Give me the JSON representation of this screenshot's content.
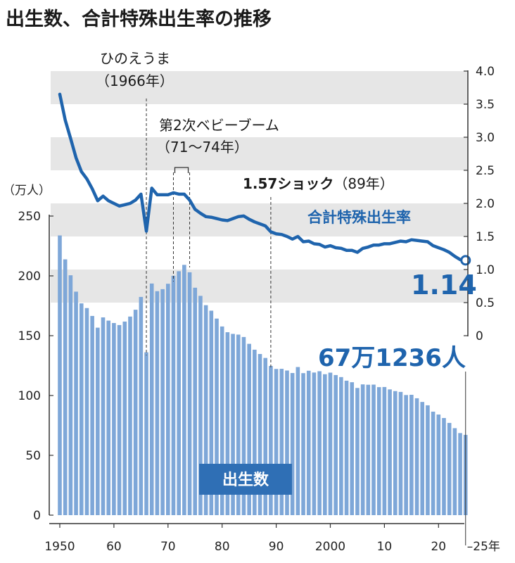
{
  "title": "出生数、合計特殊出生率の推移",
  "chart_data": {
    "type": "bar+line",
    "x_tick_labels": [
      "1950",
      "60",
      "70",
      "80",
      "90",
      "2000",
      "10",
      "20",
      "25年"
    ],
    "series": [
      {
        "name": "出生数",
        "type": "bar",
        "unit": "万人",
        "axis": "left",
        "ylim": [
          0,
          250
        ],
        "y_ticks": [
          0,
          50,
          100,
          150,
          200,
          250
        ],
        "y_axis_unit_label": "（万人）",
        "x": [
          1950,
          1951,
          1952,
          1953,
          1954,
          1955,
          1956,
          1957,
          1958,
          1959,
          1960,
          1961,
          1962,
          1963,
          1964,
          1965,
          1966,
          1967,
          1968,
          1969,
          1970,
          1971,
          1972,
          1973,
          1974,
          1975,
          1976,
          1977,
          1978,
          1979,
          1980,
          1981,
          1982,
          1983,
          1984,
          1985,
          1986,
          1987,
          1988,
          1989,
          1990,
          1991,
          1992,
          1993,
          1994,
          1995,
          1996,
          1997,
          1998,
          1999,
          2000,
          2001,
          2002,
          2003,
          2004,
          2005,
          2006,
          2007,
          2008,
          2009,
          2010,
          2011,
          2012,
          2013,
          2014,
          2015,
          2016,
          2017,
          2018,
          2019,
          2020,
          2021,
          2022,
          2023,
          2024,
          2025
        ],
        "values": [
          233.8,
          213.8,
          200.5,
          186.8,
          177.0,
          173.1,
          166.5,
          156.7,
          165.3,
          162.6,
          160.6,
          158.9,
          161.8,
          166.0,
          171.7,
          182.4,
          136.1,
          193.6,
          187.2,
          188.9,
          193.4,
          200.1,
          203.9,
          209.2,
          203.0,
          190.1,
          183.3,
          175.5,
          170.9,
          164.3,
          157.7,
          152.9,
          151.5,
          150.9,
          148.9,
          143.2,
          138.3,
          134.7,
          131.4,
          124.7,
          122.2,
          122.3,
          120.9,
          118.8,
          123.8,
          118.7,
          120.7,
          119.2,
          120.3,
          117.8,
          119.1,
          117.1,
          115.4,
          112.4,
          111.1,
          106.3,
          109.3,
          109.0,
          109.1,
          107.0,
          107.1,
          105.1,
          103.7,
          103.0,
          100.4,
          100.6,
          97.7,
          94.6,
          91.8,
          86.5,
          84.1,
          81.2,
          77.1,
          72.7,
          68.6,
          67.1
        ]
      },
      {
        "name": "合計特殊出生率",
        "type": "line",
        "axis": "right",
        "ylim": [
          0,
          4.0
        ],
        "y_ticks": [
          0,
          0.5,
          1.0,
          1.5,
          2.0,
          2.5,
          3.0,
          3.5,
          4.0
        ],
        "x": [
          1950,
          1951,
          1952,
          1953,
          1954,
          1955,
          1956,
          1957,
          1958,
          1959,
          1960,
          1961,
          1962,
          1963,
          1964,
          1965,
          1966,
          1967,
          1968,
          1969,
          1970,
          1971,
          1972,
          1973,
          1974,
          1975,
          1976,
          1977,
          1978,
          1979,
          1980,
          1981,
          1982,
          1983,
          1984,
          1985,
          1986,
          1987,
          1988,
          1989,
          1990,
          1991,
          1992,
          1993,
          1994,
          1995,
          1996,
          1997,
          1998,
          1999,
          2000,
          2001,
          2002,
          2003,
          2004,
          2005,
          2006,
          2007,
          2008,
          2009,
          2010,
          2011,
          2012,
          2013,
          2014,
          2015,
          2016,
          2017,
          2018,
          2019,
          2020,
          2021,
          2022,
          2023,
          2024,
          2025
        ],
        "values": [
          3.65,
          3.26,
          2.98,
          2.69,
          2.48,
          2.37,
          2.22,
          2.04,
          2.11,
          2.04,
          2.0,
          1.96,
          1.98,
          2.0,
          2.05,
          2.14,
          1.58,
          2.23,
          2.13,
          2.13,
          2.13,
          2.16,
          2.14,
          2.14,
          2.05,
          1.91,
          1.85,
          1.8,
          1.79,
          1.77,
          1.75,
          1.74,
          1.77,
          1.8,
          1.81,
          1.76,
          1.72,
          1.69,
          1.66,
          1.57,
          1.54,
          1.53,
          1.5,
          1.46,
          1.5,
          1.42,
          1.43,
          1.39,
          1.38,
          1.34,
          1.36,
          1.33,
          1.32,
          1.29,
          1.29,
          1.26,
          1.32,
          1.34,
          1.37,
          1.37,
          1.39,
          1.39,
          1.41,
          1.43,
          1.42,
          1.45,
          1.44,
          1.43,
          1.42,
          1.36,
          1.33,
          1.3,
          1.26,
          1.2,
          1.15,
          1.14
        ]
      }
    ],
    "annotations": {
      "hinoeuma": {
        "line1": "ひのえうま",
        "line2": "（1966年）",
        "year": 1966
      },
      "baby_boom": {
        "line1": "第2次ベビーブーム",
        "line2": "（71～74年）",
        "start": 1971,
        "end": 1974
      },
      "shock": {
        "text_bold": "1.57ショック",
        "text_normal": "（89年）",
        "year": 1989
      },
      "rate_latest_label": "1.14",
      "births_latest_label": "67万1236人",
      "births_badge": "出生数",
      "rate_series_label": "合計特殊出生率"
    },
    "colors": {
      "bar": "#7ea7d8",
      "line": "#1f64ad",
      "band": "#e6e6e6",
      "badge": "#2f6fb5"
    }
  }
}
